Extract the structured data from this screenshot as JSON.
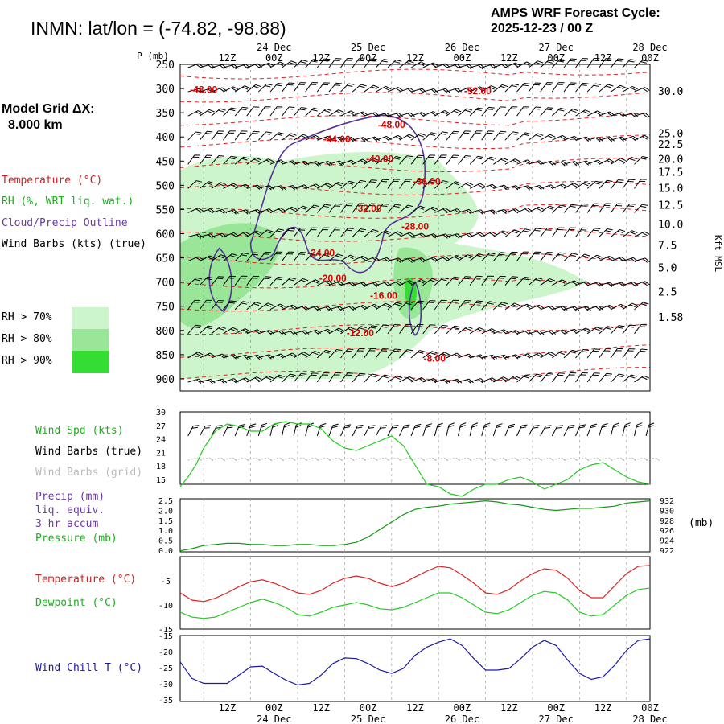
{
  "header": {
    "station_title": "INMN:  lat/lon = (-74.82, -98.88)",
    "cycle_line1": "AMPS WRF Forecast Cycle:",
    "cycle_line2": "2025-12-23 / 00  Z"
  },
  "model_grid": {
    "label": "Model Grid ΔX:",
    "value": "8.000 km"
  },
  "time_axis": {
    "hour_labels": [
      "12Z",
      "00Z",
      "12Z",
      "00Z",
      "12Z",
      "00Z",
      "12Z",
      "00Z",
      "12Z",
      "00Z"
    ],
    "date_labels": [
      "24 Dec",
      "25 Dec",
      "26 Dec",
      "27 Dec",
      "28 Dec"
    ]
  },
  "legend": {
    "temperature": "Temperature (°C)",
    "rh": "RH (%, WRT liq. wat.)",
    "cloud": "Cloud/Precip Outline",
    "wind_barbs": "Wind Barbs (kts) (true)",
    "rh70": "RH > 70%",
    "rh80": "RH > 80%",
    "rh90": "RH > 90%",
    "rh_colors": [
      "#ccf5cc",
      "#99e699",
      "#33dd33"
    ]
  },
  "panel_labels": {
    "wind_spd": "Wind Spd (kts)",
    "barbs_true": "Wind Barbs (true)",
    "barbs_grid": "Wind Barbs (grid)",
    "precip1": "Precip (mm)",
    "precip2": "liq. equiv.",
    "precip3": "3-hr accum",
    "pressure": "Pressure (mb)",
    "pressure_unit": "(mb)",
    "temperature": "Temperature (°C)",
    "dewpoint": "Dewpoint (°C)",
    "wind_chill": "Wind Chill T (°C)"
  },
  "colors": {
    "temperature": "#dd2222",
    "dewpoint": "#22cc22",
    "wind_spd": "#22cc22",
    "pressure": "#119911",
    "wind_chill": "#1a1aaa",
    "cloud": "#553399",
    "label_purple": "#6a3aa0",
    "label_red": "#cc2222",
    "label_green": "#22aa22"
  },
  "chart_data": [
    {
      "type": "heatmap",
      "name": "time-height cross section",
      "x_hours": [
        6,
        126
      ],
      "pressure_levels_mb": [
        250,
        300,
        350,
        400,
        450,
        500,
        550,
        600,
        650,
        700,
        750,
        800,
        850,
        900
      ],
      "ylim_mb": [
        250,
        925
      ],
      "kft_axis_label": "Kft MSL",
      "kft_ticks": [
        "30.0",
        "25.0",
        "22.5",
        "20.0",
        "17.5",
        "15.0",
        "12.5",
        "10.0",
        "7.5",
        "5.0",
        "2.5",
        "1.58"
      ],
      "kft_tick_levels_mb": [
        305,
        392,
        415,
        445,
        472,
        505,
        540,
        580,
        623,
        670,
        720,
        772,
        833,
        900
      ],
      "temperature_contours": [
        {
          "label": "-48.00",
          "hour": 12,
          "p": 302
        },
        {
          "label": "-52.00",
          "hour": 82,
          "p": 305
        },
        {
          "label": "-48.00",
          "hour": 60,
          "p": 375
        },
        {
          "label": "-44.00",
          "hour": 46,
          "p": 405
        },
        {
          "label": "-40.00",
          "hour": 57,
          "p": 445
        },
        {
          "label": "-36.00",
          "hour": 69,
          "p": 492
        },
        {
          "label": "-32.00",
          "hour": 54,
          "p": 548
        },
        {
          "label": "-28.00",
          "hour": 66,
          "p": 585
        },
        {
          "label": "-24.00",
          "hour": 42,
          "p": 640
        },
        {
          "label": "-20.00",
          "hour": 45,
          "p": 692
        },
        {
          "label": "-16.00",
          "hour": 58,
          "p": 728
        },
        {
          "label": "-12.00",
          "hour": 52,
          "p": 805
        },
        {
          "label": "-8.00",
          "hour": 71,
          "p": 858
        }
      ]
    },
    {
      "type": "line",
      "name": "wind speed",
      "ylim": [
        15,
        30
      ],
      "ytick_labels": [
        "30",
        "27",
        "24",
        "21",
        "18",
        "15"
      ],
      "x": [
        6,
        8,
        10,
        12,
        15,
        18,
        21,
        24,
        27,
        30,
        33,
        36,
        39,
        42,
        45,
        48,
        51,
        54,
        57,
        60,
        63,
        66,
        69,
        72,
        75,
        78,
        81,
        84,
        87,
        90,
        93,
        96,
        99,
        102,
        105,
        108,
        111,
        114,
        117,
        120,
        123,
        126
      ],
      "values": [
        14.5,
        16.5,
        19,
        22.5,
        26,
        27.5,
        27,
        26,
        26,
        27.5,
        28,
        27.5,
        27.5,
        26.5,
        24,
        22.5,
        22,
        23,
        24,
        25,
        23,
        19,
        15,
        14.5,
        13,
        12.5,
        14,
        15,
        15,
        16,
        16.5,
        15.5,
        14,
        15,
        16,
        18,
        19,
        19.5,
        18,
        16.5,
        15.5,
        15
      ]
    },
    {
      "type": "line",
      "name": "precip and pressure",
      "ylim": [
        0,
        2.5
      ],
      "ytick_labels": [
        "2.5",
        "2.0",
        "1.5",
        "1.0",
        "0.5",
        "0.0"
      ],
      "y2_ticks": [
        "932",
        "930",
        "928",
        "926",
        "924",
        "922"
      ],
      "x": [
        6,
        9,
        12,
        15,
        18,
        21,
        24,
        27,
        30,
        33,
        36,
        39,
        42,
        45,
        48,
        51,
        54,
        57,
        60,
        63,
        66,
        69,
        72,
        75,
        78,
        81,
        84,
        87,
        90,
        93,
        96,
        99,
        102,
        105,
        108,
        111,
        114,
        117,
        120,
        123,
        126
      ],
      "pressure_values": [
        0.05,
        0.15,
        0.3,
        0.35,
        0.4,
        0.4,
        0.35,
        0.35,
        0.3,
        0.3,
        0.35,
        0.35,
        0.3,
        0.3,
        0.35,
        0.45,
        0.7,
        1.05,
        1.4,
        1.75,
        2.0,
        2.1,
        2.15,
        2.25,
        2.3,
        2.35,
        2.4,
        2.35,
        2.25,
        2.2,
        2.1,
        2.0,
        1.95,
        2.0,
        2.05,
        2.05,
        2.1,
        2.15,
        2.3,
        2.35,
        2.4
      ]
    },
    {
      "type": "line",
      "name": "temperature and dewpoint",
      "ylim": [
        -15,
        0
      ],
      "ytick_labels": [
        "-5",
        "-10",
        "-15"
      ],
      "ytick_values": [
        -5,
        -10,
        -15
      ],
      "x": [
        6,
        9,
        12,
        15,
        18,
        21,
        24,
        27,
        30,
        33,
        36,
        39,
        42,
        45,
        48,
        51,
        54,
        57,
        60,
        63,
        66,
        69,
        72,
        75,
        78,
        81,
        84,
        87,
        90,
        93,
        96,
        99,
        102,
        105,
        108,
        111,
        114,
        117,
        120,
        123,
        126
      ],
      "series": [
        {
          "key": "temperature",
          "values": [
            -7.5,
            -9,
            -9.3,
            -8.6,
            -7.5,
            -6.2,
            -5.2,
            -4.8,
            -5.5,
            -6.5,
            -7.5,
            -7.8,
            -7,
            -5.5,
            -4.5,
            -4,
            -4.5,
            -5.5,
            -6.2,
            -5.5,
            -4.2,
            -3,
            -2,
            -2.3,
            -3.8,
            -5.5,
            -7.5,
            -7.8,
            -6.8,
            -5,
            -3.5,
            -2.5,
            -2.8,
            -4.5,
            -7,
            -8.5,
            -8.5,
            -6,
            -3.5,
            -2,
            -1.8
          ]
        },
        {
          "key": "dewpoint",
          "values": [
            -11.5,
            -12.5,
            -12.8,
            -12.5,
            -11.5,
            -10.5,
            -9.5,
            -8.8,
            -9.5,
            -10.5,
            -12,
            -12.3,
            -11.5,
            -10.5,
            -10,
            -9.5,
            -10,
            -10.8,
            -11,
            -10.5,
            -9.5,
            -8.5,
            -7.5,
            -7.5,
            -8.5,
            -10,
            -11.5,
            -11.8,
            -11,
            -9.5,
            -8,
            -7.2,
            -7.5,
            -9,
            -11.5,
            -12.3,
            -12,
            -10,
            -8,
            -6.8,
            -6.5
          ]
        }
      ]
    },
    {
      "type": "line",
      "name": "wind chill",
      "ylim": [
        -35,
        -15
      ],
      "ytick_labels": [
        "-15",
        "-20",
        "-25",
        "-30",
        "-35"
      ],
      "x": [
        6,
        9,
        12,
        15,
        18,
        21,
        24,
        27,
        30,
        33,
        36,
        39,
        42,
        45,
        48,
        51,
        54,
        57,
        60,
        63,
        66,
        69,
        72,
        75,
        78,
        81,
        84,
        87,
        90,
        93,
        96,
        99,
        102,
        105,
        108,
        111,
        114,
        117,
        120,
        123,
        126
      ],
      "values": [
        -23,
        -28,
        -29.5,
        -29.5,
        -29.5,
        -27,
        -24.5,
        -24.3,
        -26.5,
        -28.5,
        -30,
        -29.5,
        -27,
        -23.5,
        -21.8,
        -22,
        -23.5,
        -25.5,
        -26.5,
        -25,
        -21,
        -18.5,
        -17,
        -16,
        -18,
        -22,
        -25.5,
        -25.5,
        -25,
        -22,
        -18.5,
        -16.5,
        -18,
        -22.5,
        -26.5,
        -28.3,
        -27.5,
        -24,
        -19.5,
        -16.5,
        -16
      ]
    }
  ]
}
